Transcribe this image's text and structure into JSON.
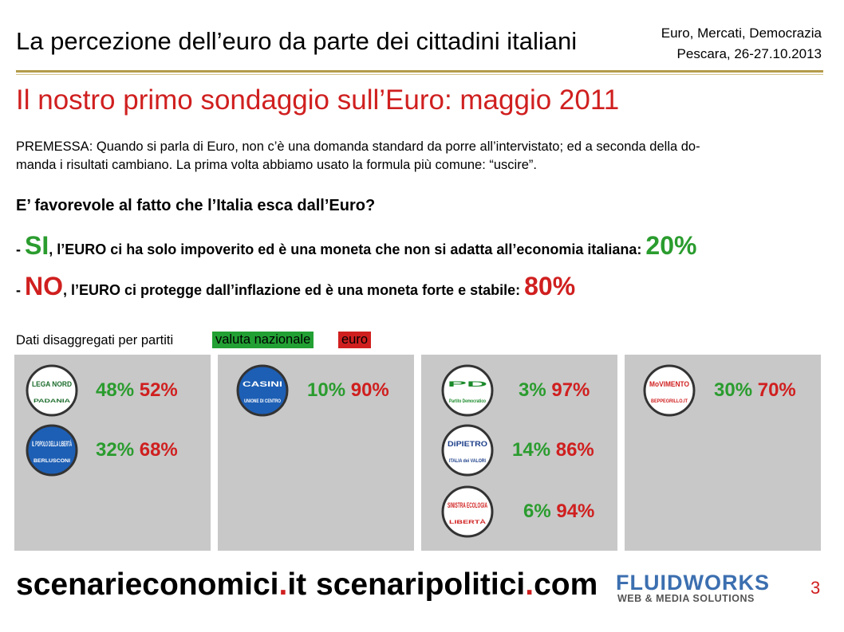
{
  "header": {
    "title": "La percezione dell’euro da parte dei cittadini italiani",
    "event": "Euro, Mercati, Democrazia",
    "place": "Pescara, 26-27.10.2013"
  },
  "subtitle": "Il nostro primo sondaggio sull’Euro: maggio 2011",
  "premise": [
    "PREMESSA: Quando si parla di Euro, non c’è una domanda standard da porre all’intervistato; ed a seconda della do-",
    "manda i risultati cambiano. La prima volta abbiamo usato la formula più comune: “uscire”."
  ],
  "question": "E’ favorevole al fatto che l’Italia esca dall’Euro?",
  "answers": [
    {
      "dash": "- ",
      "word": "SI",
      "text": ", l’EURO ci ha solo impoverito ed è una moneta che non si adatta all’economia italiana: ",
      "result": "20%"
    },
    {
      "dash": "- ",
      "word": "NO",
      "text": ", l’EURO ci protegge dall’inflazione ed è una moneta forte e stabile: ",
      "result": "80%"
    }
  ],
  "legend": {
    "label": "Dati disaggregati per partiti",
    "valuta": "valuta nazionale",
    "euro": "euro"
  },
  "panels": [
    {
      "rows": [
        {
          "logo": [
            "LEGA NORD",
            "PADANIA"
          ],
          "valuta": "48%",
          "euro": "52%"
        },
        {
          "logo": [
            "IL POPOLO DELLA LIBERTÀ",
            "BERLUSCONI"
          ],
          "valuta": "32%",
          "euro": "68%"
        }
      ]
    },
    {
      "rows": [
        {
          "logo": [
            "CASINI",
            "UNIONE DI CENTRO"
          ],
          "valuta": "10%",
          "euro": "90%"
        }
      ]
    },
    {
      "rows": [
        {
          "logo": [
            "PD",
            "Partito Democratico"
          ],
          "valuta": "3%",
          "euro": "97%"
        },
        {
          "logo": [
            "DiPIETRO",
            "ITALIA dei VALORI"
          ],
          "valuta": "14%",
          "euro": "86%"
        },
        {
          "logo": [
            "SINISTRA ECOLOGIA",
            "LIBERTÀ"
          ],
          "valuta": "6%",
          "euro": "94%"
        }
      ]
    },
    {
      "rows": [
        {
          "logo": [
            "MoVIMENTO",
            "BEPPEGRILLO.IT"
          ],
          "valuta": "30%",
          "euro": "70%"
        }
      ]
    }
  ],
  "footer": {
    "site1": "scenarieconomici",
    "dot1": ".",
    "tld1": "it",
    "site2": "scenaripolitici",
    "dot2": ".",
    "tld2": "com",
    "brand": "FLUIDWORKS",
    "brand_sub": "WEB & MEDIA SOLUTIONS",
    "page": "3"
  }
}
